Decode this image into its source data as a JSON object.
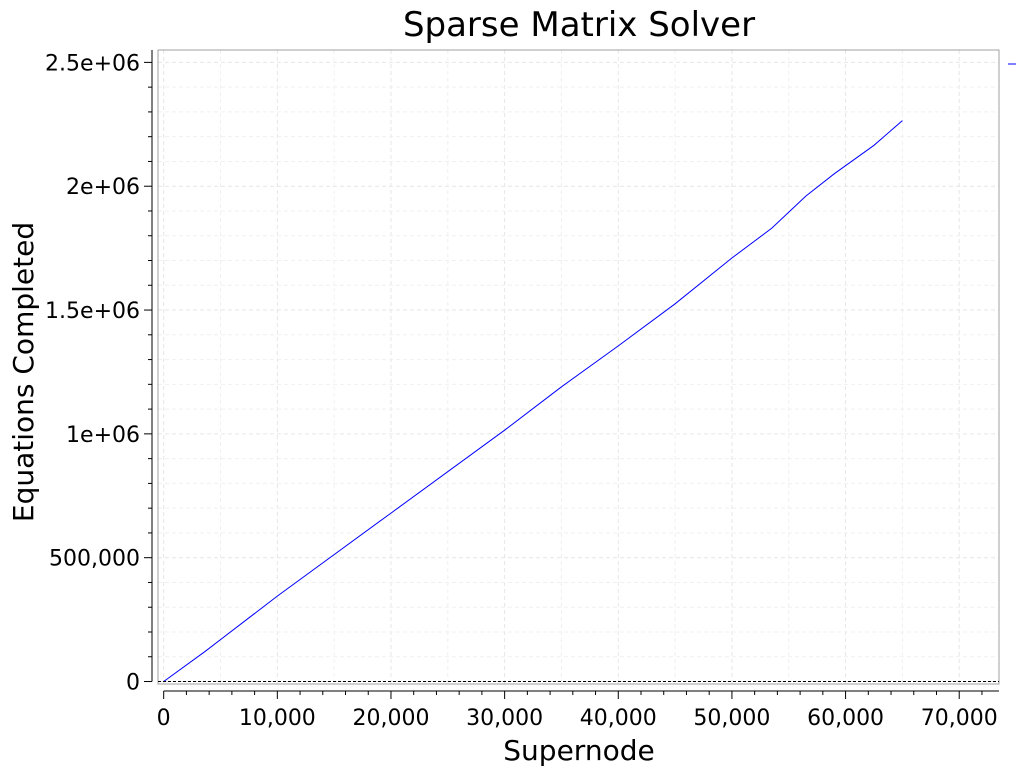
{
  "chart_data": {
    "type": "line",
    "title": "Sparse Matrix Solver",
    "xlabel": "Supernode",
    "ylabel": "Equations Completed",
    "xlim": [
      -500,
      73500
    ],
    "ylim": [
      -10000,
      2550000
    ],
    "x_ticks": [
      0,
      10000,
      20000,
      30000,
      40000,
      50000,
      60000,
      70000
    ],
    "x_tick_labels": [
      "0",
      "10,000",
      "20,000",
      "30,000",
      "40,000",
      "50,000",
      "60,000",
      "70,000"
    ],
    "y_ticks": [
      0,
      500000,
      1000000,
      1500000,
      2000000,
      2500000
    ],
    "y_tick_labels": [
      "0",
      "500,000",
      "1e+06",
      "1.5e+06",
      "2e+06",
      "2.5e+06"
    ],
    "grid": true,
    "legend": "top-right",
    "series": [
      {
        "name": "",
        "color": "#0000ff",
        "x": [
          0,
          3600,
          10000,
          20000,
          30000,
          35000,
          40000,
          45000,
          50000,
          53500,
          56500,
          59000,
          62500,
          65000
        ],
        "y": [
          0,
          120000,
          345000,
          680000,
          1015000,
          1190000,
          1355000,
          1525000,
          1710000,
          1830000,
          1960000,
          2050000,
          2165000,
          2265000
        ]
      },
      {
        "name": "",
        "color": "#000000",
        "dashed": true,
        "x": [
          -500,
          73500
        ],
        "y": [
          0,
          0
        ]
      }
    ]
  }
}
